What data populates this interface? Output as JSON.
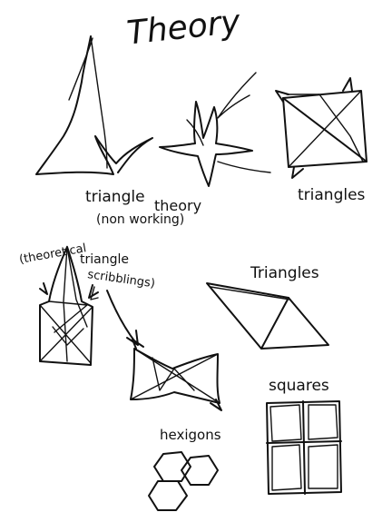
{
  "title": "Theory",
  "labels": {
    "triangle": "triangle",
    "non_working": "(non working)",
    "theory": "theory",
    "triangles_top": "triangles",
    "theoretical": "(theoretical",
    "triangle_scribblings_1": "triangle",
    "triangle_scribblings_2": "scribblings)",
    "triangles_mid": "Triangles",
    "squares": "squares",
    "hexigons": "hexigons"
  }
}
